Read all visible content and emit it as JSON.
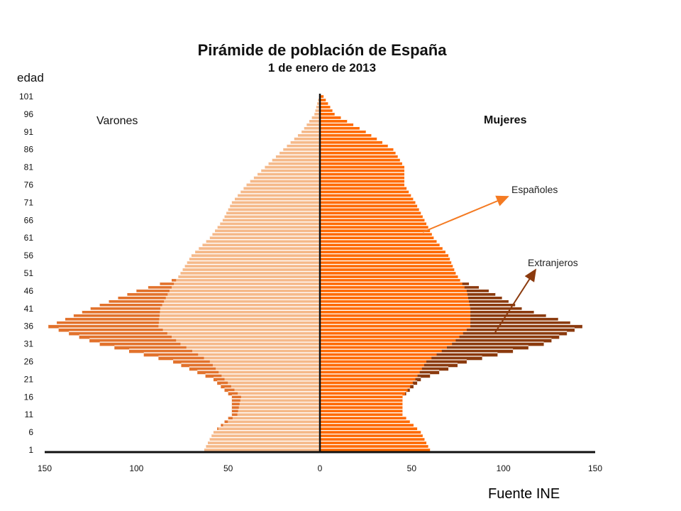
{
  "chart_data": {
    "type": "bar",
    "subtype": "population-pyramid",
    "title": "Pirámide de población de España",
    "subtitle": "1 de enero de 2013",
    "ylabel": "edad",
    "y_ticks": [
      1,
      6,
      11,
      16,
      21,
      26,
      31,
      36,
      41,
      46,
      51,
      56,
      61,
      66,
      71,
      76,
      81,
      86,
      91,
      96,
      101
    ],
    "x_ticks": [
      150,
      100,
      50,
      0,
      50,
      100,
      150
    ],
    "xlim": [
      -150,
      150
    ],
    "ylim": [
      0,
      101
    ],
    "left_label": "Varones",
    "right_label": "Mujeres",
    "annotations": [
      {
        "text": "Españoles",
        "arrow_color": "#f47a22"
      },
      {
        "text": "Extranjeros",
        "arrow_color": "#8b3a0e"
      }
    ],
    "legend": "none",
    "grid": false,
    "ages": [
      1,
      6,
      11,
      16,
      21,
      26,
      31,
      36,
      41,
      46,
      51,
      56,
      61,
      66,
      71,
      76,
      81,
      86,
      91,
      96,
      101
    ],
    "series": [
      {
        "name": "Españoles",
        "values": [
          63,
          58,
          45,
          43,
          52,
          60,
          76,
          88,
          87,
          82,
          76,
          70,
          60,
          53,
          48,
          40,
          30,
          20,
          10,
          3,
          0.5
        ],
        "color": "#f5b98a",
        "side": "male"
      },
      {
        "name": "Extranjeros",
        "values": [
          63,
          58,
          48,
          48,
          58,
          80,
          120,
          148,
          125,
          100,
          68,
          48,
          35,
          28,
          22,
          16,
          10,
          6,
          3,
          1,
          0.3
        ],
        "color": "#e2722c",
        "side": "male"
      },
      {
        "name": "Españoles",
        "values": [
          60,
          55,
          45,
          45,
          52,
          58,
          72,
          82,
          82,
          80,
          74,
          70,
          62,
          57,
          52,
          46,
          46,
          40,
          25,
          8,
          2
        ],
        "color": "#ff6a00",
        "side": "female"
      },
      {
        "name": "Extranjeros",
        "values": [
          58,
          52,
          40,
          45,
          55,
          80,
          122,
          143,
          110,
          92,
          65,
          50,
          35,
          28,
          22,
          16,
          10,
          6,
          3,
          1,
          0.3
        ],
        "color": "#8b3a0e",
        "side": "female"
      }
    ],
    "colors": {
      "male_spanish": "#f5b98a",
      "male_total": "#e2722c",
      "female_spanish": "#ff6a00",
      "female_total": "#8b3a0e",
      "axis": "#111111"
    }
  },
  "footer": {
    "source": "Fuente INE"
  }
}
